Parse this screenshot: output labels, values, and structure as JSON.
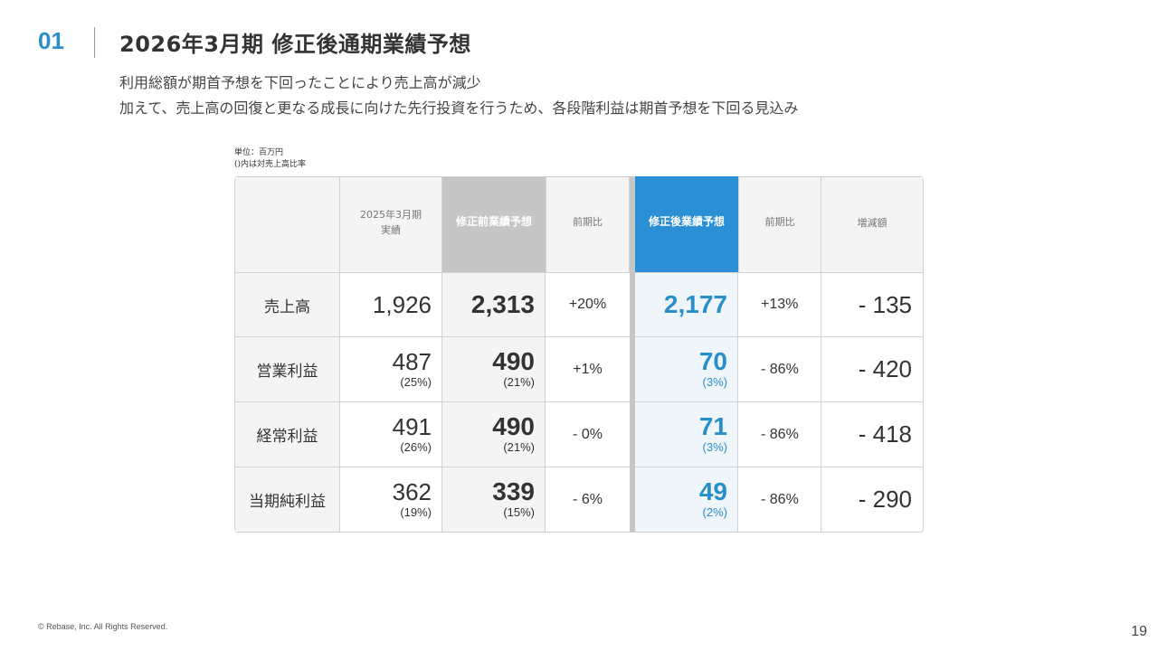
{
  "header": {
    "section_number": "01",
    "title": "2026年3月期 修正後通期業績予想",
    "subtitle_line1": "利用総額が期首予想を下回ったことにより売上高が減少",
    "subtitle_line2": "加えて、売上高の回復と更なる成長に向けた先行投資を行うため、各段階利益は期首予想を下回る見込み"
  },
  "notes": {
    "unit": "単位：百万円",
    "ratio": "()内は対売上高比率"
  },
  "colors": {
    "accent": "#2a8fc9",
    "revised_header": "#2a8fd4",
    "original_header": "#c6c6c6",
    "revised_column_bg": "#eef5fb",
    "label_bg": "#f4f4f4"
  },
  "table": {
    "headers": {
      "prior_actual_line1": "2025年3月期",
      "prior_actual_line2": "実績",
      "original_forecast": "修正前業績予想",
      "yoy_original": "前期比",
      "revised_forecast": "修正後業績予想",
      "yoy_revised": "前期比",
      "change_amount": "増減額"
    },
    "rows": [
      {
        "label": "売上高",
        "prior": "1,926",
        "prior_pct": "",
        "original": "2,313",
        "original_pct": "",
        "yoy_original": "+20%",
        "revised": "2,177",
        "revised_pct": "",
        "yoy_revised": "+13%",
        "change": "- 135"
      },
      {
        "label": "営業利益",
        "prior": "487",
        "prior_pct": "(25%)",
        "original": "490",
        "original_pct": "(21%)",
        "yoy_original": "+1%",
        "revised": "70",
        "revised_pct": "(3%)",
        "yoy_revised": "- 86%",
        "change": "- 420"
      },
      {
        "label": "経常利益",
        "prior": "491",
        "prior_pct": "(26%)",
        "original": "490",
        "original_pct": "(21%)",
        "yoy_original": "- 0%",
        "revised": "71",
        "revised_pct": "(3%)",
        "yoy_revised": "- 86%",
        "change": "- 418"
      },
      {
        "label": "当期純利益",
        "prior": "362",
        "prior_pct": "(19%)",
        "original": "339",
        "original_pct": "(15%)",
        "yoy_original": "- 6%",
        "revised": "49",
        "revised_pct": "(2%)",
        "yoy_revised": "- 86%",
        "change": "- 290"
      }
    ]
  },
  "footer": {
    "copyright": "© Rebase, Inc. All Rights Reserved.",
    "page_number": "19"
  }
}
